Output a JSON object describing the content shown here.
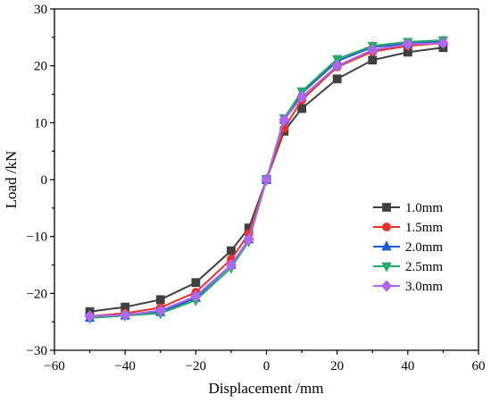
{
  "chart_data": {
    "type": "line",
    "title": "",
    "xlabel": "Displacement /mm",
    "ylabel": "Load /kN",
    "xlim": [
      -60,
      60
    ],
    "ylim": [
      -30,
      30
    ],
    "xticks": [
      -60,
      -40,
      -20,
      0,
      20,
      40,
      60
    ],
    "yticks": [
      -30,
      -20,
      -10,
      0,
      10,
      20,
      30
    ],
    "x_tick_labels": [
      "−60",
      "−40",
      "−20",
      "0",
      "20",
      "40",
      "60"
    ],
    "y_tick_labels": [
      "−30",
      "−20",
      "−10",
      "0",
      "10",
      "20",
      "30"
    ],
    "grid": false,
    "legend_position": "right",
    "series": [
      {
        "name": "1.0mm",
        "color": "#404040",
        "marker": "square",
        "x": [
          -50,
          -40,
          -30,
          -20,
          -10,
          -5,
          0,
          5,
          10,
          20,
          30,
          40,
          50
        ],
        "y": [
          -23.2,
          -22.4,
          -21.1,
          -18.1,
          -12.5,
          -8.5,
          0,
          8.5,
          12.5,
          17.7,
          21.0,
          22.4,
          23.2
        ]
      },
      {
        "name": "1.5mm",
        "color": "#e8322d",
        "marker": "circle",
        "x": [
          -50,
          -40,
          -30,
          -20,
          -10,
          -5,
          0,
          5,
          10,
          20,
          30,
          40,
          50
        ],
        "y": [
          -24.0,
          -23.5,
          -22.5,
          -19.8,
          -14.0,
          -9.5,
          0,
          9.0,
          14.0,
          19.8,
          22.5,
          23.5,
          24.0
        ]
      },
      {
        "name": "2.0mm",
        "color": "#1f5bd1",
        "marker": "triangle-up",
        "x": [
          -50,
          -40,
          -30,
          -20,
          -10,
          -5,
          0,
          5,
          10,
          20,
          30,
          40,
          50
        ],
        "y": [
          -24.3,
          -23.9,
          -23.3,
          -20.8,
          -15.0,
          -10.5,
          0,
          10.5,
          15.2,
          20.8,
          23.3,
          23.9,
          24.3
        ]
      },
      {
        "name": "2.5mm",
        "color": "#2aa86b",
        "marker": "triangle-down",
        "x": [
          -50,
          -40,
          -30,
          -20,
          -10,
          -5,
          0,
          5,
          10,
          20,
          30,
          40,
          50
        ],
        "y": [
          -24.3,
          -23.9,
          -23.5,
          -21.2,
          -15.5,
          -10.8,
          0,
          10.8,
          15.5,
          21.2,
          23.5,
          24.2,
          24.5
        ]
      },
      {
        "name": "3.0mm",
        "color": "#b066f0",
        "marker": "diamond",
        "x": [
          -50,
          -40,
          -30,
          -20,
          -10,
          -5,
          0,
          5,
          10,
          20,
          30,
          40,
          50
        ],
        "y": [
          -24.0,
          -23.8,
          -23.0,
          -20.5,
          -15.0,
          -10.5,
          0,
          10.5,
          14.5,
          20.0,
          22.8,
          23.8,
          24.0
        ]
      }
    ]
  }
}
